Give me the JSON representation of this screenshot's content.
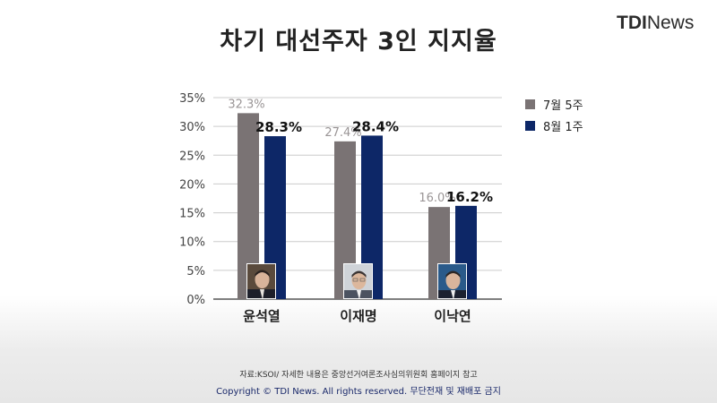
{
  "title": "차기 대선주자 3인 지지율",
  "logo": {
    "text_bold": "TDI",
    "text_light": "News",
    "dot_colors": [
      "#e8402a",
      "#1a2a7a",
      "#1a2a7a",
      "#e8402a"
    ]
  },
  "colors": {
    "series1": "#7a7374",
    "series2": "#0d2767",
    "grid": "#cccccc",
    "axis": "#555555"
  },
  "chart_data": {
    "type": "bar",
    "categories": [
      "윤석열",
      "이재명",
      "이낙연"
    ],
    "series": [
      {
        "name": "7월 5주",
        "values": [
          32.3,
          27.4,
          16.0
        ],
        "labels": [
          "32.3%",
          "27.4%",
          "16.0%"
        ]
      },
      {
        "name": "8월 1주",
        "values": [
          28.3,
          28.4,
          16.2
        ],
        "labels": [
          "28.3%",
          "28.4%",
          "16.2%"
        ]
      }
    ],
    "yticks": [
      "0%",
      "5%",
      "10%",
      "15%",
      "20%",
      "25%",
      "30%",
      "35%"
    ],
    "ylim": [
      0,
      35
    ],
    "grid": true,
    "legend_position": "right"
  },
  "photos": [
    "윤석열-portrait",
    "이재명-portrait",
    "이낙연-portrait"
  ],
  "footer": {
    "source": "자료:KSOI/ 자세한 내용은 중앙선거여론조사심의위원회 홈페이지 참고",
    "copyright": "Copyright © TDI News. All rights reserved. 무단전재 및 재배포 금지"
  }
}
